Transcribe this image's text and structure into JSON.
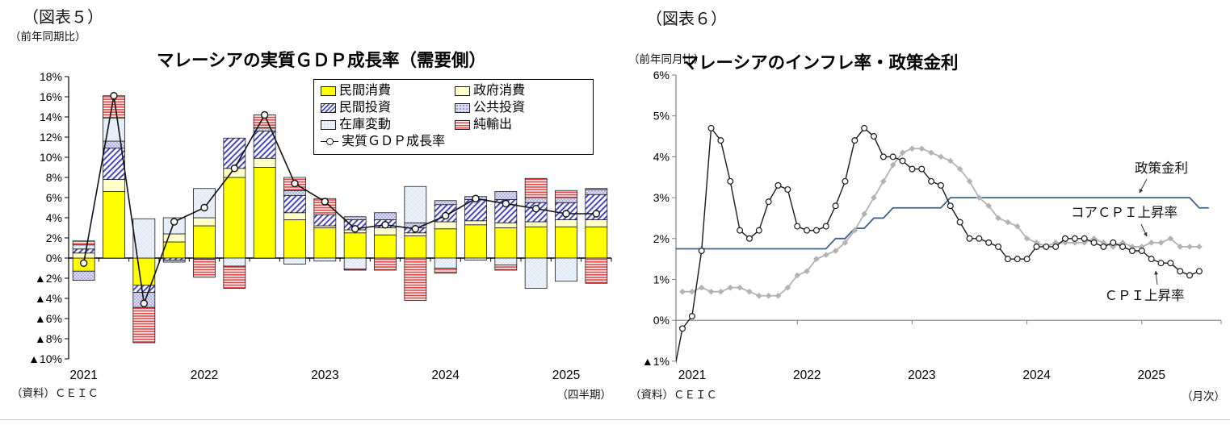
{
  "left_chart": {
    "figure_label": "（図表５）",
    "unit_note": "（前年同期比）",
    "title": "マレーシアの実質ＧＤＰ成長率（需要側）",
    "source": "（資料）ＣＥＩＣ",
    "x_note": "（四半期）",
    "legend": [
      {
        "key": "private_consumption",
        "label": "民間消費"
      },
      {
        "key": "government_consumption",
        "label": "政府消費"
      },
      {
        "key": "private_investment",
        "label": "民間投資"
      },
      {
        "key": "public_investment",
        "label": "公共投資"
      },
      {
        "key": "inventory_change",
        "label": "在庫変動"
      },
      {
        "key": "net_exports",
        "label": "純輸出"
      },
      {
        "key": "gdp_line",
        "label": "実質ＧＤＰ成長率"
      }
    ],
    "chart_data": {
      "type": "bar",
      "subtype": "stacked-bar-with-line",
      "unit": "% (contribution, year-on-year)",
      "categories": [
        "2021Q1",
        "2021Q2",
        "2021Q3",
        "2021Q4",
        "2022Q1",
        "2022Q2",
        "2022Q3",
        "2022Q4",
        "2023Q1",
        "2023Q2",
        "2023Q3",
        "2023Q4",
        "2024Q1",
        "2024Q2",
        "2024Q3",
        "2024Q4",
        "2025Q1",
        "2025Q2"
      ],
      "x_year_labels": [
        "2021",
        "2022",
        "2023",
        "2024",
        "2025"
      ],
      "ylim": [
        -10,
        18
      ],
      "ytick_step": 2,
      "grid": false,
      "legend_position": "top-right-inside",
      "series": [
        {
          "key": "private_consumption",
          "name": "民間消費",
          "values": [
            -1.3,
            6.6,
            -2.7,
            1.6,
            3.2,
            8.0,
            9.0,
            3.8,
            3.0,
            2.5,
            2.3,
            2.2,
            2.9,
            3.3,
            3.0,
            3.1,
            3.1,
            3.1
          ]
        },
        {
          "key": "government_consumption",
          "name": "政府消費",
          "values": [
            0.5,
            1.2,
            0.0,
            0.8,
            0.8,
            0.9,
            0.9,
            0.7,
            0.2,
            0.3,
            0.7,
            0.3,
            0.7,
            0.4,
            0.5,
            0.5,
            0.7,
            0.7
          ]
        },
        {
          "key": "private_investment",
          "name": "民間投資",
          "values": [
            0.4,
            3.1,
            -0.7,
            -0.2,
            0.0,
            3.0,
            2.7,
            1.7,
            1.1,
            1.0,
            0.8,
            0.5,
            1.7,
            2.1,
            2.3,
            1.9,
            1.7,
            2.5
          ]
        },
        {
          "key": "public_investment",
          "name": "公共投資",
          "values": [
            -0.9,
            0.7,
            -1.5,
            -0.2,
            -0.1,
            0.0,
            0.3,
            0.5,
            0.0,
            0.3,
            0.7,
            0.5,
            0.4,
            0.3,
            0.8,
            0.5,
            0.5,
            0.5
          ]
        },
        {
          "key": "inventory_change",
          "name": "在庫変動",
          "values": [
            0.4,
            2.3,
            3.9,
            1.6,
            2.9,
            -0.8,
            0.0,
            -0.6,
            -0.3,
            -1.1,
            0.0,
            3.6,
            -1.0,
            -0.2,
            -0.7,
            -3.0,
            -2.3,
            0.1
          ]
        },
        {
          "key": "net_exports",
          "name": "純輸出",
          "values": [
            0.4,
            2.2,
            -3.5,
            0.0,
            -1.8,
            -2.2,
            1.3,
            1.3,
            1.6,
            -0.1,
            -1.2,
            -4.2,
            -0.5,
            0.0,
            -0.5,
            1.9,
            0.7,
            -2.5
          ]
        }
      ],
      "line": {
        "key": "real_gdp_growth",
        "name": "実質ＧＤＰ成長率",
        "values": [
          -0.5,
          16.1,
          -4.5,
          3.6,
          5.0,
          8.9,
          14.2,
          7.4,
          5.6,
          2.9,
          3.3,
          2.9,
          4.2,
          5.9,
          5.4,
          4.9,
          4.4,
          4.4
        ]
      }
    }
  },
  "right_chart": {
    "figure_label": "（図表６）",
    "unit_note": "（前年同月比）",
    "title": "マレーシアのインフレ率・政策金利",
    "source": "（資料）ＣＥＩＣ",
    "x_note": "（月次）",
    "annotations": {
      "policy": {
        "label": "政策金利"
      },
      "core": {
        "label": "コアＣＰＩ上昇率"
      },
      "cpi": {
        "label": "ＣＰＩ上昇率"
      }
    },
    "chart_data": {
      "type": "line",
      "unit": "%",
      "frequency": "monthly",
      "x_start": "2021-01",
      "x_end": "2025-07",
      "x_year_labels": [
        "2021",
        "2022",
        "2023",
        "2024",
        "2025"
      ],
      "ylim": [
        -1,
        6
      ],
      "ytick_step": 1,
      "grid": false,
      "colors": {
        "cpi": "#1a1a1a",
        "core": "#b3b3b3",
        "policy": "#3f618c"
      },
      "cpi_lead_value_2020_12": -1.4,
      "series": [
        {
          "key": "cpi",
          "name": "ＣＰＩ上昇率",
          "marker": "circle",
          "values": [
            -0.2,
            0.1,
            1.7,
            4.7,
            4.4,
            3.4,
            2.2,
            2.0,
            2.2,
            2.9,
            3.3,
            3.2,
            2.3,
            2.2,
            2.2,
            2.3,
            2.8,
            3.4,
            4.4,
            4.7,
            4.5,
            4.0,
            4.0,
            3.9,
            3.7,
            3.7,
            3.4,
            3.3,
            2.8,
            2.4,
            2.0,
            2.0,
            1.9,
            1.8,
            1.5,
            1.5,
            1.5,
            1.8,
            1.8,
            1.8,
            2.0,
            2.0,
            2.0,
            1.9,
            1.8,
            1.9,
            1.8,
            1.7,
            1.7,
            1.5,
            1.4,
            1.4,
            1.2,
            1.1,
            1.2
          ]
        },
        {
          "key": "core",
          "name": "コアＣＰＩ上昇率",
          "marker": "diamond",
          "values": [
            0.7,
            0.7,
            0.8,
            0.7,
            0.7,
            0.8,
            0.8,
            0.7,
            0.6,
            0.6,
            0.6,
            0.8,
            1.1,
            1.2,
            1.5,
            1.6,
            1.7,
            1.9,
            2.2,
            2.6,
            3.0,
            3.4,
            3.8,
            4.1,
            4.2,
            4.2,
            4.1,
            4.0,
            3.9,
            3.7,
            3.4,
            3.0,
            2.8,
            2.5,
            2.4,
            2.3,
            2.0,
            1.9,
            1.8,
            1.9,
            1.9,
            1.9,
            1.9,
            2.0,
            1.9,
            1.8,
            1.9,
            1.8,
            1.8,
            1.9,
            1.9,
            2.0,
            1.8,
            1.8,
            1.8
          ]
        },
        {
          "key": "policy",
          "name": "政策金利",
          "marker": "none",
          "x_end": "2025-08",
          "values": [
            1.75,
            1.75,
            1.75,
            1.75,
            1.75,
            1.75,
            1.75,
            1.75,
            1.75,
            1.75,
            1.75,
            1.75,
            1.75,
            1.75,
            1.75,
            1.75,
            2.0,
            2.0,
            2.25,
            2.25,
            2.5,
            2.5,
            2.75,
            2.75,
            2.75,
            2.75,
            2.75,
            2.75,
            3.0,
            3.0,
            3.0,
            3.0,
            3.0,
            3.0,
            3.0,
            3.0,
            3.0,
            3.0,
            3.0,
            3.0,
            3.0,
            3.0,
            3.0,
            3.0,
            3.0,
            3.0,
            3.0,
            3.0,
            3.0,
            3.0,
            3.0,
            3.0,
            3.0,
            3.0,
            2.75,
            2.75
          ]
        }
      ]
    }
  }
}
